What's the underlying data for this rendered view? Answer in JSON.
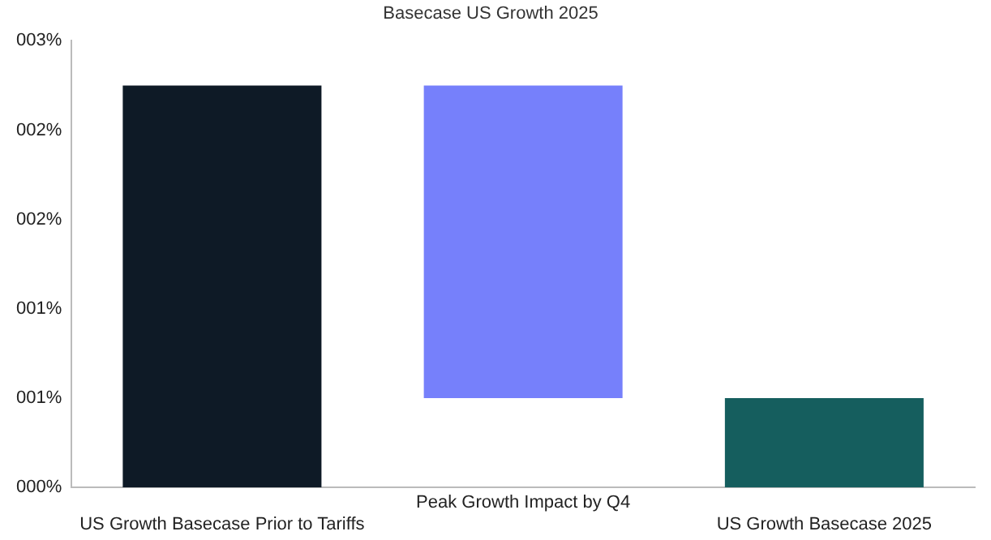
{
  "chart_data": {
    "type": "bar",
    "title": "Basecase US Growth 2025",
    "categories": [
      "US Growth Basecase Prior to Tariffs",
      "Peak Growth Impact by Q4",
      "US Growth Basecase 2025"
    ],
    "values": [
      2.25,
      1.75,
      0.5
    ],
    "base": [
      0,
      0.5,
      0
    ],
    "colors": [
      "#0e1a26",
      "#7680fb",
      "#155e5e"
    ],
    "ylim": [
      0,
      2.5
    ],
    "yticks": [
      {
        "value": 0,
        "label": "000%"
      },
      {
        "value": 0.5,
        "label": "001%"
      },
      {
        "value": 1,
        "label": "001%"
      },
      {
        "value": 1.5,
        "label": "002%"
      },
      {
        "value": 2,
        "label": "002%"
      },
      {
        "value": 2.5,
        "label": "003%"
      }
    ],
    "grid": false,
    "legend": false
  }
}
